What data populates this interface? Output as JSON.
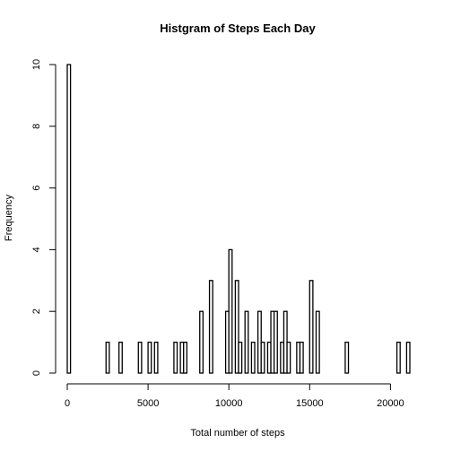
{
  "chart_data": {
    "type": "bar",
    "title": "Histgram of Steps Each Day",
    "xlabel": "Total number of steps",
    "ylabel": "Frequency",
    "bin_width": 200,
    "xlim": [
      0,
      21200
    ],
    "ylim": [
      0,
      10
    ],
    "x_ticks": [
      0,
      5000,
      10000,
      15000,
      20000
    ],
    "y_ticks": [
      0,
      2,
      4,
      6,
      8,
      10
    ],
    "bins": [
      {
        "start": 0,
        "count": 10
      },
      {
        "start": 2400,
        "count": 1
      },
      {
        "start": 3200,
        "count": 1
      },
      {
        "start": 4400,
        "count": 1
      },
      {
        "start": 5000,
        "count": 1
      },
      {
        "start": 5400,
        "count": 1
      },
      {
        "start": 6600,
        "count": 1
      },
      {
        "start": 7000,
        "count": 1
      },
      {
        "start": 7200,
        "count": 1
      },
      {
        "start": 8200,
        "count": 2
      },
      {
        "start": 8800,
        "count": 3
      },
      {
        "start": 9800,
        "count": 2
      },
      {
        "start": 10000,
        "count": 4
      },
      {
        "start": 10400,
        "count": 3
      },
      {
        "start": 10600,
        "count": 1
      },
      {
        "start": 11000,
        "count": 2
      },
      {
        "start": 11400,
        "count": 1
      },
      {
        "start": 11800,
        "count": 2
      },
      {
        "start": 12000,
        "count": 1
      },
      {
        "start": 12400,
        "count": 1
      },
      {
        "start": 12600,
        "count": 2
      },
      {
        "start": 12800,
        "count": 2
      },
      {
        "start": 13200,
        "count": 1
      },
      {
        "start": 13400,
        "count": 2
      },
      {
        "start": 13600,
        "count": 1
      },
      {
        "start": 14200,
        "count": 1
      },
      {
        "start": 14400,
        "count": 1
      },
      {
        "start": 15000,
        "count": 3
      },
      {
        "start": 15400,
        "count": 2
      },
      {
        "start": 17200,
        "count": 1
      },
      {
        "start": 20400,
        "count": 1
      },
      {
        "start": 21000,
        "count": 1
      }
    ]
  }
}
